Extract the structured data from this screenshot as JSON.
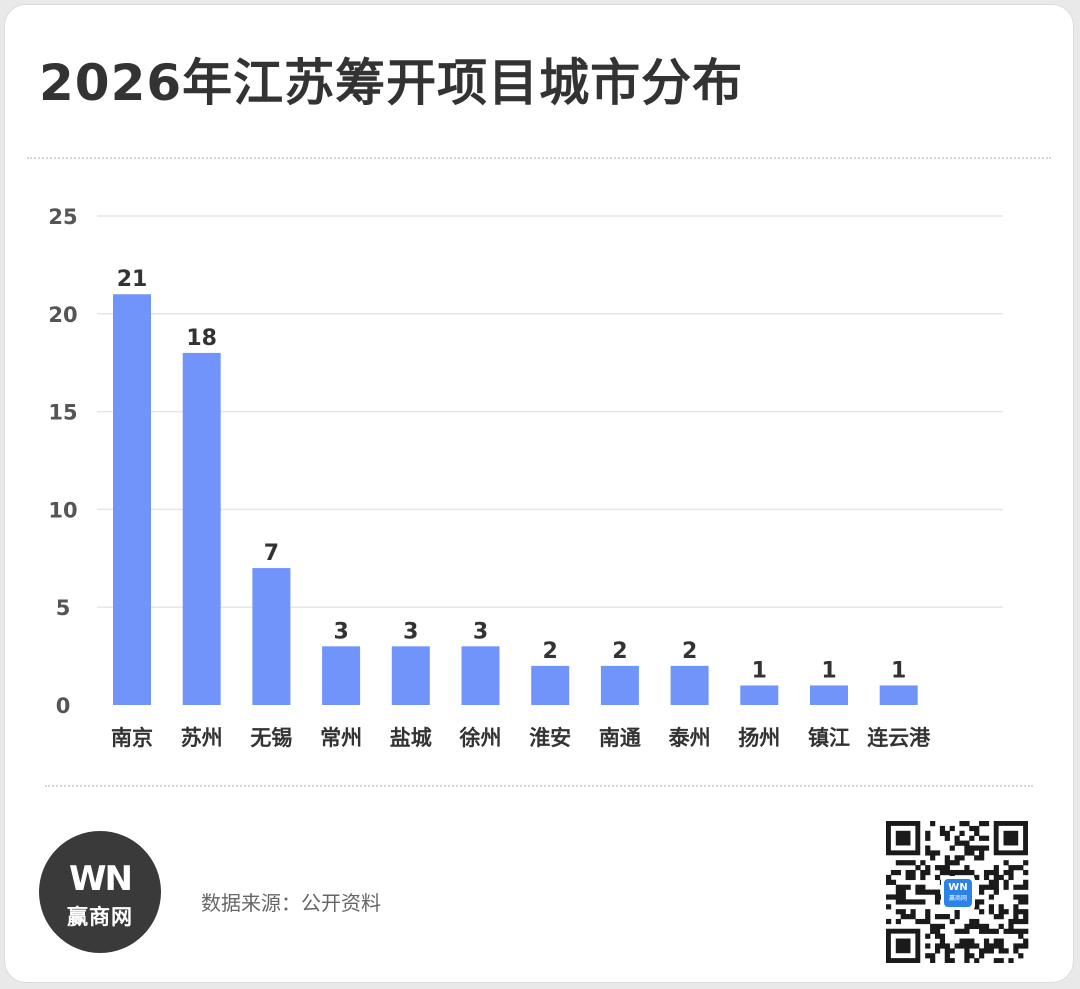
{
  "header": {
    "title": "2026年江苏筹开项目城市分布"
  },
  "footer": {
    "source": "数据来源：公开资料",
    "logo_mark": "WN",
    "logo_text": "赢商网",
    "qr_badge_mark": "WN",
    "qr_badge_text": "赢商网"
  },
  "colors": {
    "bar": "#7094f9",
    "grid": "#e6e6e6",
    "title": "#333333",
    "logo_bg": "#3a3a3a",
    "qr_badge": "#2b83ea"
  },
  "icons": {
    "logo": "winshang-logo-icon",
    "qr": "qr-code-icon"
  },
  "chart_data": {
    "type": "bar",
    "title": "2026年江苏筹开项目城市分布",
    "xlabel": "",
    "ylabel": "",
    "categories": [
      "南京",
      "苏州",
      "无锡",
      "常州",
      "盐城",
      "徐州",
      "淮安",
      "南通",
      "泰州",
      "扬州",
      "镇江",
      "连云港"
    ],
    "values": [
      21,
      18,
      7,
      3,
      3,
      3,
      2,
      2,
      2,
      1,
      1,
      1
    ],
    "ylim": [
      0,
      25
    ],
    "yticks": [
      0,
      5,
      10,
      15,
      20,
      25
    ],
    "grid": true,
    "legend": "none",
    "data_labels": true
  }
}
